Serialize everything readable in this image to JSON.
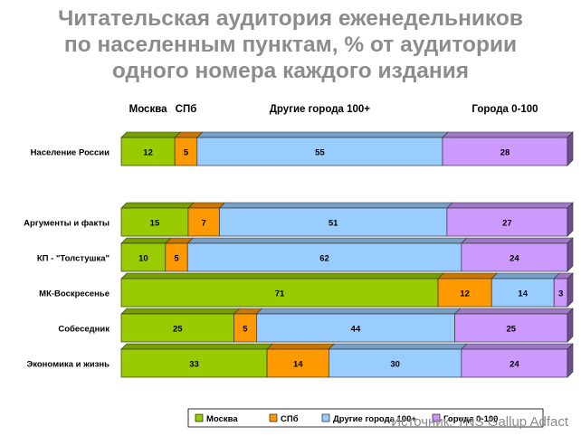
{
  "title": [
    "Читательская аудитория еженедельников",
    "по населенным пунктам, % от аудитории",
    "одного номера каждого издания"
  ],
  "source": "Источник: TNS Gallup Adfact",
  "colors": {
    "Москва": "#99cc00",
    "СПб": "#ff9900",
    "Другие города 100+": "#99ccff",
    "Города 0-100": "#cc99ff"
  },
  "chart_data": {
    "type": "bar",
    "orientation": "horizontal",
    "stacked": true,
    "percent": true,
    "column_headers": [
      "Москва",
      "СПб",
      "Другие города 100+",
      "Города 0-100"
    ],
    "categories": [
      "Население России",
      "Аргументы и факты",
      "КП - \"Толстушка\"",
      "МК-Воскресенье",
      "Собеседник",
      "Экономика и жизнь"
    ],
    "series": [
      {
        "name": "Москва",
        "values": [
          12,
          15,
          10,
          71,
          25,
          33
        ]
      },
      {
        "name": "СПб",
        "values": [
          5,
          7,
          5,
          12,
          5,
          14
        ]
      },
      {
        "name": "Другие города 100+",
        "values": [
          55,
          51,
          62,
          14,
          44,
          30
        ]
      },
      {
        "name": "Города 0-100",
        "values": [
          28,
          27,
          24,
          3,
          25,
          24
        ]
      }
    ],
    "legend": "bottom",
    "grid": false
  }
}
